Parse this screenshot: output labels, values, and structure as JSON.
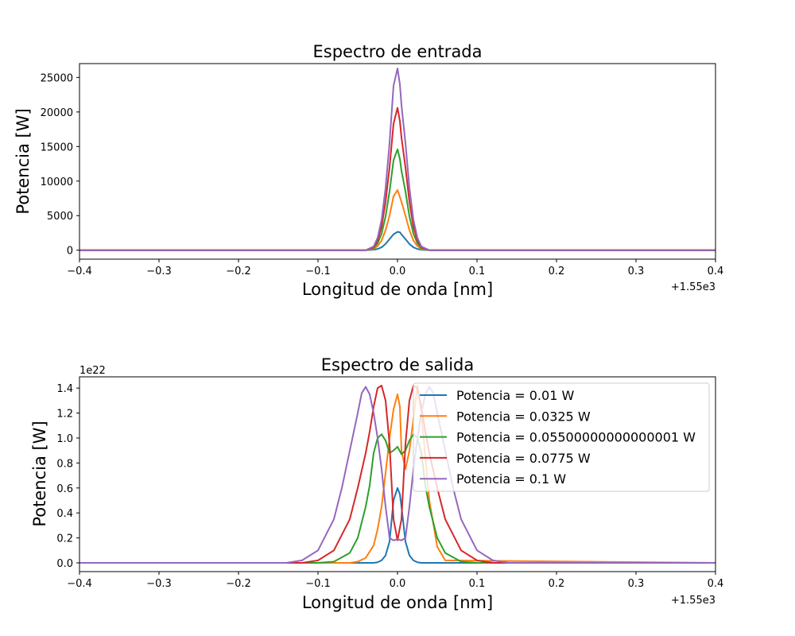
{
  "figure": {
    "panels": [
      "top",
      "bottom"
    ]
  },
  "chart_data": [
    {
      "type": "line",
      "title": "Espectro de entrada",
      "xlabel": "Longitud de onda [nm]",
      "ylabel": "Potencia [W]",
      "x_offset_label": "+1.55e3",
      "xlim": [
        -0.4,
        0.4
      ],
      "ylim": [
        -1300,
        27000
      ],
      "xticks": [
        -0.4,
        -0.3,
        -0.2,
        -0.1,
        0.0,
        0.1,
        0.2,
        0.3,
        0.4
      ],
      "xtick_labels": [
        "−0.4",
        "−0.3",
        "−0.2",
        "−0.1",
        "0.0",
        "0.1",
        "0.2",
        "0.3",
        "0.4"
      ],
      "yticks": [
        0,
        5000,
        10000,
        15000,
        20000,
        25000
      ],
      "ytick_labels": [
        "0",
        "5000",
        "10000",
        "15000",
        "20000",
        "25000"
      ],
      "legend": "none",
      "grid": false,
      "series": [
        {
          "color": "#1f77b4",
          "x": [
            -0.4,
            -0.04,
            -0.03,
            -0.025,
            -0.02,
            -0.015,
            -0.01,
            -0.005,
            0.0,
            0.003,
            0.005,
            0.01,
            0.015,
            0.02,
            0.025,
            0.03,
            0.04,
            0.4
          ],
          "y": [
            0,
            0,
            60,
            180,
            420,
            900,
            1600,
            2300,
            2650,
            2600,
            2300,
            1600,
            900,
            420,
            180,
            60,
            0,
            0
          ]
        },
        {
          "color": "#ff7f0e",
          "x": [
            -0.4,
            -0.04,
            -0.03,
            -0.025,
            -0.02,
            -0.015,
            -0.01,
            -0.005,
            0.0,
            0.003,
            0.005,
            0.01,
            0.015,
            0.02,
            0.025,
            0.03,
            0.04,
            0.4
          ],
          "y": [
            0,
            0,
            180,
            600,
            1400,
            2900,
            5000,
            7800,
            8700,
            7700,
            7000,
            5000,
            2900,
            1400,
            600,
            180,
            0,
            0
          ]
        },
        {
          "color": "#2ca02c",
          "x": [
            -0.4,
            -0.04,
            -0.03,
            -0.025,
            -0.02,
            -0.015,
            -0.01,
            -0.005,
            0.0,
            0.003,
            0.005,
            0.01,
            0.015,
            0.02,
            0.025,
            0.03,
            0.04,
            0.4
          ],
          "y": [
            0,
            0,
            300,
            1000,
            2400,
            4900,
            8500,
            13000,
            14600,
            13200,
            11500,
            8500,
            4900,
            2400,
            1000,
            300,
            0,
            0
          ]
        },
        {
          "color": "#d62728",
          "x": [
            -0.4,
            -0.04,
            -0.03,
            -0.025,
            -0.02,
            -0.015,
            -0.01,
            -0.005,
            0.0,
            0.003,
            0.005,
            0.01,
            0.015,
            0.02,
            0.025,
            0.03,
            0.04,
            0.4
          ],
          "y": [
            0,
            0,
            420,
            1400,
            3400,
            7000,
            12000,
            18300,
            20600,
            18700,
            16300,
            12000,
            7000,
            3400,
            1400,
            420,
            0,
            0
          ]
        },
        {
          "color": "#9467bd",
          "x": [
            -0.4,
            -0.04,
            -0.03,
            -0.025,
            -0.02,
            -0.015,
            -0.01,
            -0.005,
            0.0,
            0.003,
            0.005,
            0.01,
            0.015,
            0.02,
            0.025,
            0.03,
            0.04,
            0.4
          ],
          "y": [
            0,
            0,
            540,
            1800,
            4400,
            9000,
            15500,
            23800,
            26300,
            24000,
            21000,
            15500,
            9000,
            4400,
            1800,
            540,
            0,
            0
          ]
        }
      ]
    },
    {
      "type": "line",
      "title": "Espectro de salida",
      "xlabel": "Longitud de onda [nm]",
      "ylabel": "Potencia [W]",
      "x_offset_label": "+1.55e3",
      "y_offset_label": "1e22",
      "xlim": [
        -0.4,
        0.4
      ],
      "ylim": [
        -0.07,
        1.49
      ],
      "xticks": [
        -0.4,
        -0.3,
        -0.2,
        -0.1,
        0.0,
        0.1,
        0.2,
        0.3,
        0.4
      ],
      "xtick_labels": [
        "−0.4",
        "−0.3",
        "−0.2",
        "−0.1",
        "0.0",
        "0.1",
        "0.2",
        "0.3",
        "0.4"
      ],
      "yticks": [
        0.0,
        0.2,
        0.4,
        0.6,
        0.8,
        1.0,
        1.2,
        1.4
      ],
      "ytick_labels": [
        "0.0",
        "0.2",
        "0.4",
        "0.6",
        "0.8",
        "1.0",
        "1.2",
        "1.4"
      ],
      "legend": "top-right",
      "grid": false,
      "series": [
        {
          "name": "Potencia = 0.01 W",
          "color": "#1f77b4",
          "x": [
            -0.4,
            -0.04,
            -0.03,
            -0.025,
            -0.02,
            -0.015,
            -0.01,
            -0.005,
            0.0,
            0.003,
            0.005,
            0.01,
            0.015,
            0.02,
            0.025,
            0.03,
            0.04,
            0.4
          ],
          "y": [
            0,
            0,
            0.0,
            0.005,
            0.02,
            0.06,
            0.17,
            0.5,
            0.6,
            0.55,
            0.45,
            0.17,
            0.06,
            0.02,
            0.005,
            0.0,
            0,
            0
          ]
        },
        {
          "name": "Potencia = 0.0325 W",
          "color": "#ff7f0e",
          "x": [
            -0.4,
            -0.06,
            -0.05,
            -0.04,
            -0.03,
            -0.025,
            -0.02,
            -0.015,
            -0.01,
            -0.005,
            0.0,
            0.003,
            0.005,
            0.01,
            0.015,
            0.02,
            0.025,
            0.03,
            0.04,
            0.05,
            0.06,
            0.4
          ],
          "y": [
            0,
            0,
            0.01,
            0.04,
            0.14,
            0.27,
            0.45,
            0.72,
            1.0,
            1.23,
            1.35,
            1.25,
            0.9,
            0.75,
            0.9,
            1.15,
            1.42,
            1.2,
            0.5,
            0.13,
            0.02,
            0
          ]
        },
        {
          "name": "Potencia = 0.05500000000000001 W",
          "color": "#2ca02c",
          "x": [
            -0.4,
            -0.1,
            -0.08,
            -0.06,
            -0.05,
            -0.04,
            -0.035,
            -0.03,
            -0.025,
            -0.02,
            -0.015,
            -0.01,
            -0.005,
            0.0,
            0.005,
            0.01,
            0.015,
            0.02,
            0.025,
            0.03,
            0.035,
            0.04,
            0.05,
            0.06,
            0.08,
            0.1,
            0.4
          ],
          "y": [
            0,
            0,
            0.01,
            0.08,
            0.2,
            0.45,
            0.62,
            0.88,
            1.0,
            1.03,
            0.98,
            0.88,
            0.9,
            0.93,
            0.87,
            0.9,
            0.98,
            1.03,
            1.0,
            0.88,
            0.62,
            0.45,
            0.2,
            0.08,
            0.01,
            0,
            0
          ]
        },
        {
          "name": "Potencia = 0.0775 W",
          "color": "#d62728",
          "x": [
            -0.4,
            -0.12,
            -0.1,
            -0.08,
            -0.06,
            -0.05,
            -0.04,
            -0.035,
            -0.03,
            -0.025,
            -0.02,
            -0.015,
            -0.01,
            -0.005,
            0.0,
            0.005,
            0.01,
            0.015,
            0.02,
            0.025,
            0.03,
            0.035,
            0.04,
            0.05,
            0.06,
            0.08,
            0.1,
            0.12,
            0.4
          ],
          "y": [
            0,
            0,
            0.02,
            0.1,
            0.35,
            0.6,
            0.88,
            1.05,
            1.25,
            1.4,
            1.42,
            1.3,
            0.95,
            0.35,
            0.18,
            0.35,
            0.95,
            1.3,
            1.42,
            1.4,
            1.25,
            1.05,
            0.88,
            0.6,
            0.35,
            0.1,
            0.02,
            0,
            0
          ]
        },
        {
          "name": "Potencia = 0.1 W",
          "color": "#9467bd",
          "x": [
            -0.4,
            -0.14,
            -0.12,
            -0.1,
            -0.08,
            -0.07,
            -0.06,
            -0.05,
            -0.045,
            -0.04,
            -0.035,
            -0.03,
            -0.025,
            -0.02,
            -0.015,
            -0.01,
            -0.005,
            0.0,
            0.005,
            0.01,
            0.015,
            0.02,
            0.025,
            0.03,
            0.035,
            0.04,
            0.045,
            0.05,
            0.06,
            0.07,
            0.08,
            0.1,
            0.12,
            0.14,
            0.4
          ],
          "y": [
            0,
            0,
            0.02,
            0.1,
            0.35,
            0.6,
            0.9,
            1.2,
            1.36,
            1.41,
            1.35,
            1.2,
            1.0,
            0.75,
            0.45,
            0.2,
            0.18,
            0.19,
            0.18,
            0.2,
            0.45,
            0.75,
            1.0,
            1.2,
            1.35,
            1.41,
            1.36,
            1.2,
            0.9,
            0.6,
            0.35,
            0.1,
            0.02,
            0,
            0
          ]
        }
      ]
    }
  ]
}
